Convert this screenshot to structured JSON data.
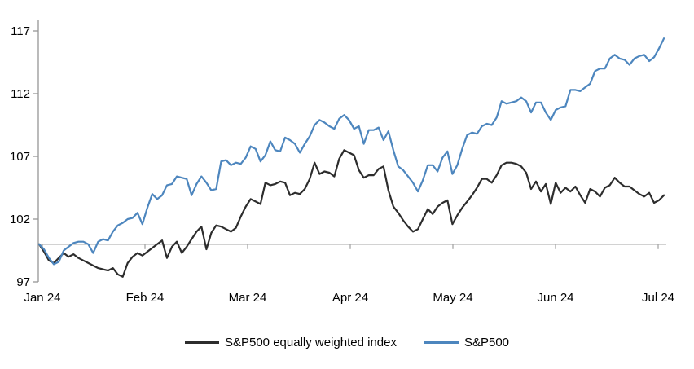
{
  "chart_data": {
    "type": "line",
    "title": "",
    "xlabel": "",
    "ylabel": "",
    "x_axis": {
      "labels": [
        "Jan 24",
        "Feb 24",
        "Mar 24",
        "Apr 24",
        "May 24",
        "Jun 24",
        "Jul 24"
      ],
      "tick_x": [
        52,
        178,
        304,
        430,
        556,
        682,
        808
      ]
    },
    "y_axis": {
      "ticks": [
        97,
        102,
        107,
        112,
        117
      ],
      "min": 97,
      "max": 117
    },
    "baseline_value": 100,
    "grid": "off",
    "legend_position": "bottom",
    "axis_color": "#969696",
    "series": [
      {
        "name": "S&P500 equally weighted index",
        "color": "#2d2d2d",
        "values": [
          100.0,
          99.4,
          98.7,
          98.5,
          98.9,
          99.3,
          99.0,
          99.2,
          98.9,
          98.7,
          98.5,
          98.3,
          98.1,
          98.0,
          97.9,
          98.1,
          97.6,
          97.4,
          98.5,
          99.0,
          99.3,
          99.1,
          99.4,
          99.7,
          100.0,
          100.3,
          98.9,
          99.8,
          100.2,
          99.3,
          99.8,
          100.4,
          101.0,
          101.4,
          99.6,
          100.9,
          101.5,
          101.4,
          101.2,
          101.0,
          101.3,
          102.2,
          103.0,
          103.6,
          103.4,
          103.2,
          104.9,
          104.7,
          104.8,
          105.0,
          104.9,
          103.9,
          104.1,
          104.0,
          104.4,
          105.2,
          106.5,
          105.6,
          105.8,
          105.7,
          105.4,
          106.8,
          107.5,
          107.3,
          107.1,
          105.9,
          105.3,
          105.5,
          105.5,
          106.0,
          106.2,
          104.3,
          103.0,
          102.5,
          101.9,
          101.4,
          101.0,
          101.2,
          102.0,
          102.8,
          102.4,
          103.0,
          103.3,
          103.5,
          101.6,
          102.3,
          102.9,
          103.4,
          103.9,
          104.5,
          105.2,
          105.2,
          104.9,
          105.5,
          106.3,
          106.5,
          106.5,
          106.4,
          106.2,
          105.7,
          104.4,
          105.0,
          104.2,
          104.8,
          103.2,
          104.9,
          104.1,
          104.5,
          104.2,
          104.6,
          103.9,
          103.3,
          104.4,
          104.2,
          103.8,
          104.5,
          104.7,
          105.3,
          104.9,
          104.6,
          104.6,
          104.3,
          104.0,
          103.8,
          104.1,
          103.3,
          103.5,
          103.9
        ]
      },
      {
        "name": "S&P500",
        "color": "#4d86be",
        "values": [
          100.0,
          99.6,
          98.9,
          98.4,
          98.6,
          99.5,
          99.8,
          100.1,
          100.2,
          100.2,
          100.0,
          99.3,
          100.2,
          100.4,
          100.3,
          101.0,
          101.5,
          101.7,
          102.0,
          102.1,
          102.5,
          101.6,
          102.9,
          104.0,
          103.6,
          103.9,
          104.7,
          104.8,
          105.4,
          105.3,
          105.2,
          103.9,
          104.8,
          105.4,
          104.9,
          104.3,
          104.4,
          106.6,
          106.7,
          106.3,
          106.5,
          106.4,
          106.9,
          107.8,
          107.6,
          106.6,
          107.1,
          108.2,
          107.5,
          107.4,
          108.5,
          108.3,
          108.0,
          107.3,
          108.0,
          108.6,
          109.5,
          109.9,
          109.7,
          109.4,
          109.2,
          110.0,
          110.3,
          109.9,
          109.2,
          109.4,
          108.0,
          109.1,
          109.1,
          109.3,
          108.3,
          109.0,
          107.5,
          106.2,
          105.9,
          105.4,
          104.9,
          104.2,
          105.1,
          106.3,
          106.3,
          105.8,
          106.9,
          107.4,
          105.6,
          106.3,
          107.6,
          108.7,
          108.9,
          108.8,
          109.4,
          109.6,
          109.5,
          110.1,
          111.4,
          111.2,
          111.3,
          111.4,
          111.7,
          111.4,
          110.5,
          111.3,
          111.3,
          110.5,
          109.9,
          110.7,
          110.9,
          111.0,
          112.3,
          112.3,
          112.2,
          112.5,
          112.8,
          113.8,
          114.0,
          114.0,
          114.8,
          115.1,
          114.8,
          114.7,
          114.3,
          114.8,
          115.0,
          115.1,
          114.6,
          114.9,
          115.6,
          116.4
        ]
      }
    ]
  },
  "legend": {
    "items": [
      {
        "label": "S&P500 equally weighted index",
        "color": "#2d2d2d"
      },
      {
        "label": "S&P500",
        "color": "#4d86be"
      }
    ]
  }
}
